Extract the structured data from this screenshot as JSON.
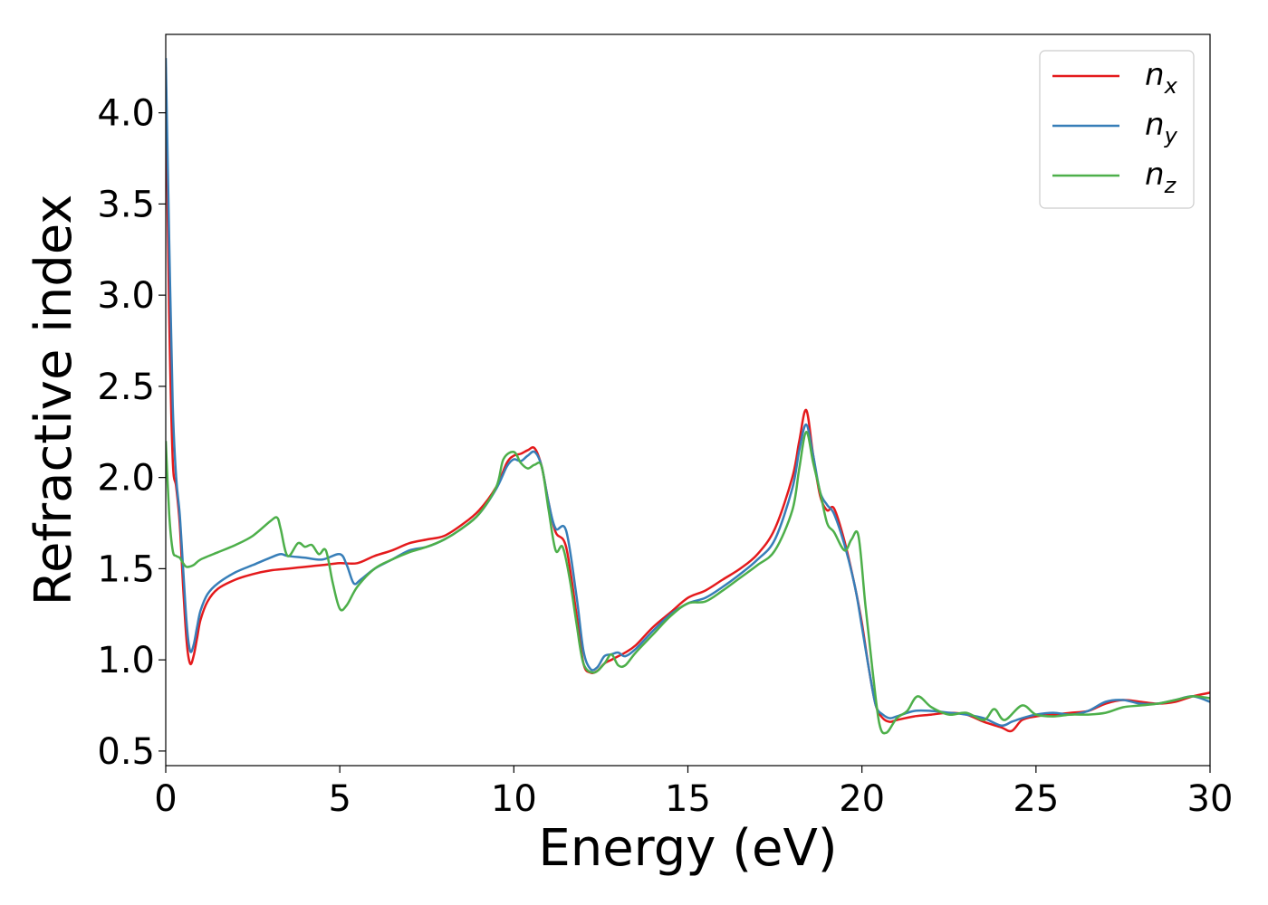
{
  "chart_data": {
    "type": "line",
    "title": "",
    "xlabel": "Energy (eV)",
    "ylabel": "Refractive index",
    "xlim": [
      0,
      30
    ],
    "ylim": [
      0.42,
      4.43
    ],
    "xticks": [
      0,
      5,
      10,
      15,
      20,
      25,
      30
    ],
    "yticks": [
      0.5,
      1.0,
      1.5,
      2.0,
      2.5,
      3.0,
      3.5,
      4.0
    ],
    "xtick_labels": [
      "0",
      "5",
      "10",
      "15",
      "20",
      "25",
      "30"
    ],
    "ytick_labels": [
      "0.5",
      "1.0",
      "1.5",
      "2.0",
      "2.5",
      "3.0",
      "3.5",
      "4.0"
    ],
    "grid": false,
    "legend_position": "top-right",
    "series": [
      {
        "name": "n_x",
        "legend_base": "n",
        "legend_sub": "x",
        "color": "#e41a1c",
        "x": [
          0,
          0.1,
          0.2,
          0.3,
          0.4,
          0.5,
          0.6,
          0.7,
          0.8,
          0.9,
          1.0,
          1.2,
          1.5,
          2.0,
          2.5,
          3.0,
          3.5,
          4.0,
          4.5,
          5.0,
          5.5,
          6.0,
          6.5,
          7.0,
          7.5,
          8.0,
          8.5,
          9.0,
          9.5,
          9.8,
          10.0,
          10.2,
          10.4,
          10.6,
          10.8,
          11.0,
          11.2,
          11.5,
          11.8,
          12.0,
          12.2,
          12.4,
          12.6,
          12.8,
          13.0,
          13.2,
          13.5,
          14.0,
          14.5,
          15.0,
          15.5,
          16.0,
          16.5,
          17.0,
          17.5,
          18.0,
          18.2,
          18.4,
          18.6,
          18.8,
          19.0,
          19.2,
          19.5,
          19.8,
          20.0,
          20.2,
          20.4,
          20.6,
          20.8,
          21.0,
          21.5,
          22.0,
          22.5,
          23.0,
          23.5,
          24.0,
          24.3,
          24.6,
          25.0,
          25.5,
          26.0,
          26.5,
          27.0,
          27.5,
          28.0,
          28.5,
          29.0,
          29.5,
          30.0
        ],
        "y": [
          4.25,
          2.9,
          2.1,
          1.95,
          1.75,
          1.4,
          1.1,
          0.98,
          1.02,
          1.12,
          1.22,
          1.32,
          1.39,
          1.44,
          1.47,
          1.49,
          1.5,
          1.51,
          1.52,
          1.53,
          1.53,
          1.57,
          1.6,
          1.64,
          1.66,
          1.68,
          1.74,
          1.82,
          1.95,
          2.08,
          2.12,
          2.13,
          2.15,
          2.16,
          2.06,
          1.86,
          1.7,
          1.62,
          1.25,
          0.98,
          0.93,
          0.94,
          0.98,
          1.0,
          1.02,
          1.04,
          1.08,
          1.18,
          1.26,
          1.34,
          1.38,
          1.44,
          1.5,
          1.58,
          1.72,
          2.0,
          2.2,
          2.37,
          2.12,
          1.9,
          1.82,
          1.83,
          1.65,
          1.4,
          1.2,
          0.95,
          0.75,
          0.68,
          0.66,
          0.67,
          0.69,
          0.7,
          0.71,
          0.7,
          0.66,
          0.63,
          0.61,
          0.67,
          0.69,
          0.7,
          0.71,
          0.72,
          0.76,
          0.78,
          0.77,
          0.76,
          0.77,
          0.8,
          0.82
        ]
      },
      {
        "name": "n_y",
        "legend_base": "n",
        "legend_sub": "y",
        "color": "#377eb8",
        "x": [
          0,
          0.1,
          0.2,
          0.3,
          0.4,
          0.5,
          0.6,
          0.7,
          0.8,
          0.9,
          1.0,
          1.2,
          1.5,
          2.0,
          2.5,
          3.0,
          3.3,
          3.5,
          4.0,
          4.5,
          5.0,
          5.2,
          5.4,
          5.6,
          6.0,
          6.5,
          7.0,
          7.5,
          8.0,
          8.5,
          9.0,
          9.5,
          9.8,
          10.0,
          10.2,
          10.4,
          10.6,
          10.8,
          11.0,
          11.2,
          11.5,
          11.8,
          12.0,
          12.2,
          12.4,
          12.6,
          12.8,
          13.0,
          13.2,
          13.5,
          14.0,
          14.5,
          15.0,
          15.5,
          16.0,
          16.5,
          17.0,
          17.5,
          18.0,
          18.2,
          18.4,
          18.6,
          18.8,
          19.0,
          19.2,
          19.5,
          19.8,
          20.0,
          20.2,
          20.4,
          20.6,
          20.8,
          21.0,
          21.5,
          22.0,
          22.5,
          23.0,
          23.5,
          24.0,
          24.3,
          24.6,
          25.0,
          25.5,
          26.0,
          26.5,
          27.0,
          27.5,
          28.0,
          28.5,
          29.0,
          29.5,
          30.0
        ],
        "y": [
          4.3,
          3.3,
          2.4,
          2.0,
          1.8,
          1.5,
          1.2,
          1.05,
          1.08,
          1.18,
          1.27,
          1.36,
          1.42,
          1.48,
          1.52,
          1.56,
          1.58,
          1.57,
          1.56,
          1.55,
          1.58,
          1.52,
          1.42,
          1.44,
          1.5,
          1.55,
          1.6,
          1.62,
          1.66,
          1.72,
          1.8,
          1.94,
          2.06,
          2.1,
          2.09,
          2.12,
          2.14,
          2.06,
          1.86,
          1.72,
          1.71,
          1.35,
          1.05,
          0.95,
          0.96,
          1.02,
          1.03,
          1.04,
          1.02,
          1.06,
          1.16,
          1.25,
          1.31,
          1.34,
          1.4,
          1.47,
          1.55,
          1.66,
          1.94,
          2.15,
          2.29,
          2.12,
          1.92,
          1.85,
          1.8,
          1.63,
          1.4,
          1.18,
          0.95,
          0.75,
          0.7,
          0.68,
          0.69,
          0.72,
          0.72,
          0.71,
          0.7,
          0.68,
          0.64,
          0.66,
          0.68,
          0.7,
          0.71,
          0.7,
          0.72,
          0.77,
          0.78,
          0.76,
          0.76,
          0.78,
          0.8,
          0.77
        ]
      },
      {
        "name": "n_z",
        "legend_base": "n",
        "legend_sub": "z",
        "color": "#4daf4a",
        "x": [
          0,
          0.1,
          0.2,
          0.3,
          0.4,
          0.5,
          0.6,
          0.8,
          1.0,
          1.5,
          2.0,
          2.5,
          3.0,
          3.2,
          3.3,
          3.5,
          3.8,
          4.0,
          4.2,
          4.4,
          4.6,
          4.8,
          5.0,
          5.2,
          5.5,
          6.0,
          6.5,
          7.0,
          7.5,
          8.0,
          8.5,
          9.0,
          9.5,
          9.7,
          10.0,
          10.2,
          10.4,
          10.6,
          10.8,
          11.0,
          11.2,
          11.4,
          11.6,
          11.8,
          12.0,
          12.3,
          12.6,
          12.8,
          13.0,
          13.2,
          13.5,
          14.0,
          14.5,
          15.0,
          15.5,
          16.0,
          16.5,
          17.0,
          17.5,
          18.0,
          18.2,
          18.4,
          18.6,
          18.8,
          19.0,
          19.2,
          19.5,
          19.7,
          19.9,
          20.1,
          20.3,
          20.5,
          20.7,
          21.0,
          21.3,
          21.6,
          22.0,
          22.5,
          23.0,
          23.5,
          23.8,
          24.1,
          24.6,
          25.0,
          25.5,
          26.0,
          26.5,
          27.0,
          27.5,
          28.0,
          28.5,
          29.0,
          29.5,
          30.0
        ],
        "y": [
          2.2,
          1.8,
          1.6,
          1.57,
          1.56,
          1.53,
          1.51,
          1.52,
          1.55,
          1.59,
          1.63,
          1.68,
          1.76,
          1.78,
          1.72,
          1.57,
          1.64,
          1.62,
          1.63,
          1.58,
          1.6,
          1.42,
          1.28,
          1.3,
          1.4,
          1.5,
          1.55,
          1.59,
          1.62,
          1.66,
          1.72,
          1.8,
          1.95,
          2.1,
          2.14,
          2.08,
          2.05,
          2.07,
          2.06,
          1.82,
          1.6,
          1.62,
          1.45,
          1.2,
          0.98,
          0.93,
          0.98,
          1.03,
          0.97,
          0.97,
          1.04,
          1.14,
          1.24,
          1.31,
          1.32,
          1.38,
          1.45,
          1.52,
          1.6,
          1.82,
          2.05,
          2.25,
          2.08,
          1.92,
          1.75,
          1.7,
          1.6,
          1.66,
          1.68,
          1.3,
          0.95,
          0.65,
          0.6,
          0.68,
          0.72,
          0.8,
          0.74,
          0.7,
          0.71,
          0.67,
          0.73,
          0.67,
          0.75,
          0.7,
          0.69,
          0.7,
          0.7,
          0.71,
          0.74,
          0.75,
          0.76,
          0.78,
          0.8,
          0.79
        ]
      }
    ]
  }
}
